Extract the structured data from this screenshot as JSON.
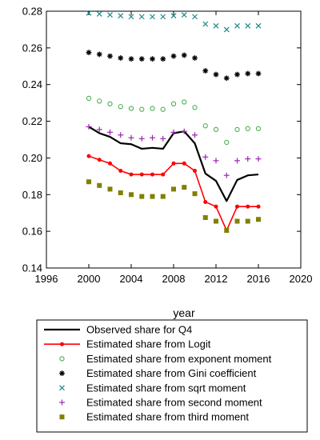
{
  "chart_data": {
    "type": "line",
    "title": "",
    "xlabel": "year",
    "ylabel": "",
    "xlim": [
      1996,
      2020
    ],
    "ylim": [
      0.14,
      0.28
    ],
    "xticks": [
      1996,
      2000,
      2004,
      2008,
      2012,
      2016,
      2020
    ],
    "yticks": [
      0.14,
      0.16,
      0.18,
      0.2,
      0.22,
      0.24,
      0.26,
      0.28
    ],
    "xtick_labels": [
      "1996",
      "2000",
      "2004",
      "2008",
      "2012",
      "2016",
      "2020"
    ],
    "ytick_labels": [
      "0.14",
      "0.16",
      "0.18",
      "0.20",
      "0.22",
      "0.24",
      "0.26",
      "0.28"
    ],
    "grid": false,
    "legend_position": "bottom",
    "x": [
      2000,
      2001,
      2002,
      2003,
      2004,
      2005,
      2006,
      2007,
      2008,
      2009,
      2010,
      2011,
      2012,
      2013,
      2014,
      2015,
      2016
    ],
    "series": [
      {
        "name": "Observed share for Q4",
        "style": "line",
        "color": "#000000",
        "values": [
          0.217,
          0.2135,
          0.2115,
          0.208,
          0.2075,
          0.205,
          0.2055,
          0.205,
          0.2135,
          0.2145,
          0.208,
          0.1915,
          0.1875,
          0.1765,
          0.188,
          0.1905,
          0.191
        ]
      },
      {
        "name": "Estimated share from Logit",
        "style": "line-dot",
        "color": "#ff0000",
        "values": [
          0.201,
          0.199,
          0.197,
          0.193,
          0.191,
          0.191,
          0.191,
          0.191,
          0.197,
          0.197,
          0.193,
          0.176,
          0.1735,
          0.1605,
          0.1735,
          0.1735,
          0.1735
        ]
      },
      {
        "name": "Estimated share from exponent moment",
        "style": "open-circle",
        "color": "#4caf50",
        "values": [
          0.2325,
          0.231,
          0.2295,
          0.228,
          0.227,
          0.2265,
          0.227,
          0.2265,
          0.2295,
          0.2305,
          0.2275,
          0.2175,
          0.2155,
          0.2085,
          0.2155,
          0.216,
          0.216
        ]
      },
      {
        "name": "Estimated share from Gini coefficient",
        "style": "asterisk",
        "color": "#000000",
        "values": [
          0.2575,
          0.2565,
          0.2555,
          0.2545,
          0.254,
          0.254,
          0.254,
          0.254,
          0.2555,
          0.256,
          0.2545,
          0.2475,
          0.2455,
          0.2435,
          0.2455,
          0.246,
          0.246
        ]
      },
      {
        "name": "Estimated share from sqrt moment",
        "style": "x",
        "color": "#1f8a8a",
        "values": [
          0.279,
          0.2785,
          0.278,
          0.2775,
          0.277,
          0.277,
          0.277,
          0.277,
          0.2775,
          0.278,
          0.277,
          0.273,
          0.272,
          0.27,
          0.272,
          0.272,
          0.272
        ]
      },
      {
        "name": "Estimated share from second moment",
        "style": "plus",
        "color": "#9c27b0",
        "values": [
          0.217,
          0.2155,
          0.214,
          0.2125,
          0.211,
          0.2105,
          0.211,
          0.2105,
          0.214,
          0.2145,
          0.2125,
          0.2005,
          0.1985,
          0.1905,
          0.1985,
          0.1995,
          0.1995
        ]
      },
      {
        "name": "Estimated share from third moment",
        "style": "square",
        "color": "#808000",
        "values": [
          0.187,
          0.185,
          0.183,
          0.181,
          0.18,
          0.179,
          0.179,
          0.179,
          0.183,
          0.184,
          0.1805,
          0.1675,
          0.1655,
          0.1605,
          0.1655,
          0.1655,
          0.1665
        ]
      }
    ]
  }
}
